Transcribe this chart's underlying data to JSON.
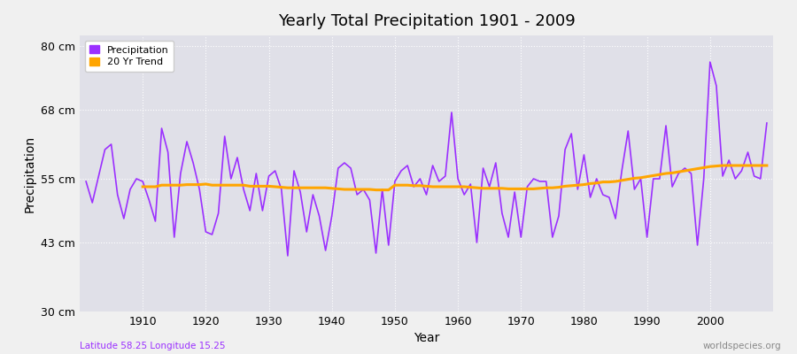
{
  "title": "Yearly Total Precipitation 1901 - 2009",
  "xlabel": "Year",
  "ylabel": "Precipitation",
  "subtitle_left": "Latitude 58.25 Longitude 15.25",
  "subtitle_right": "worldspecies.org",
  "ylim": [
    30,
    82
  ],
  "yticks": [
    30,
    43,
    55,
    68,
    80
  ],
  "ytick_labels": [
    "30 cm",
    "43 cm",
    "55 cm",
    "68 cm",
    "80 cm"
  ],
  "xlim": [
    1900,
    2010
  ],
  "xticks": [
    1910,
    1920,
    1930,
    1940,
    1950,
    1960,
    1970,
    1980,
    1990,
    2000
  ],
  "precip_color": "#9B30FF",
  "trend_color": "#FFA500",
  "outer_bg": "#F0F0F0",
  "plot_bg": "#E0E0E8",
  "legend_precip": "Precipitation",
  "legend_trend": "20 Yr Trend",
  "subtitle_left_color": "#9B30FF",
  "subtitle_right_color": "#888888",
  "years": [
    1901,
    1902,
    1903,
    1904,
    1905,
    1906,
    1907,
    1908,
    1909,
    1910,
    1911,
    1912,
    1913,
    1914,
    1915,
    1916,
    1917,
    1918,
    1919,
    1920,
    1921,
    1922,
    1923,
    1924,
    1925,
    1926,
    1927,
    1928,
    1929,
    1930,
    1931,
    1932,
    1933,
    1934,
    1935,
    1936,
    1937,
    1938,
    1939,
    1940,
    1941,
    1942,
    1943,
    1944,
    1945,
    1946,
    1947,
    1948,
    1949,
    1950,
    1951,
    1952,
    1953,
    1954,
    1955,
    1956,
    1957,
    1958,
    1959,
    1960,
    1961,
    1962,
    1963,
    1964,
    1965,
    1966,
    1967,
    1968,
    1969,
    1970,
    1971,
    1972,
    1973,
    1974,
    1975,
    1976,
    1977,
    1978,
    1979,
    1980,
    1981,
    1982,
    1983,
    1984,
    1985,
    1986,
    1987,
    1988,
    1989,
    1990,
    1991,
    1992,
    1993,
    1994,
    1995,
    1996,
    1997,
    1998,
    1999,
    2000,
    2001,
    2002,
    2003,
    2004,
    2005,
    2006,
    2007,
    2008,
    2009
  ],
  "precip": [
    54.5,
    50.5,
    55.5,
    60.5,
    61.5,
    52.0,
    47.5,
    53.0,
    55.0,
    54.5,
    51.0,
    47.0,
    64.5,
    60.0,
    44.0,
    56.0,
    62.0,
    58.0,
    53.0,
    45.0,
    44.5,
    48.5,
    63.0,
    55.0,
    59.0,
    53.0,
    49.0,
    56.0,
    49.0,
    55.5,
    56.5,
    53.0,
    40.5,
    56.5,
    52.5,
    45.0,
    52.0,
    48.0,
    41.5,
    48.0,
    57.0,
    58.0,
    57.0,
    52.0,
    53.0,
    51.0,
    41.0,
    53.0,
    42.5,
    54.5,
    56.5,
    57.5,
    53.5,
    55.0,
    52.0,
    57.5,
    54.5,
    55.5,
    67.5,
    55.0,
    52.0,
    54.0,
    43.0,
    57.0,
    53.5,
    58.0,
    48.5,
    44.0,
    52.5,
    44.0,
    53.5,
    55.0,
    54.5,
    54.5,
    44.0,
    48.0,
    60.5,
    63.5,
    53.0,
    59.5,
    51.5,
    55.0,
    52.0,
    51.5,
    47.5,
    56.5,
    64.0,
    53.0,
    55.0,
    44.0,
    55.0,
    55.0,
    65.0,
    53.5,
    56.0,
    57.0,
    56.0,
    42.5,
    55.0,
    77.0,
    72.5,
    55.5,
    58.5,
    55.0,
    56.5,
    60.0,
    55.5,
    55.0,
    65.5
  ],
  "trend": [
    null,
    null,
    null,
    null,
    null,
    null,
    null,
    null,
    null,
    53.5,
    53.5,
    53.5,
    53.8,
    53.8,
    53.8,
    53.8,
    53.9,
    53.9,
    53.9,
    54.0,
    53.8,
    53.8,
    53.8,
    53.8,
    53.8,
    53.8,
    53.6,
    53.6,
    53.6,
    53.6,
    53.5,
    53.4,
    53.3,
    53.3,
    53.3,
    53.3,
    53.3,
    53.3,
    53.3,
    53.2,
    53.1,
    53.0,
    53.0,
    53.0,
    53.0,
    53.0,
    52.9,
    52.9,
    52.9,
    53.8,
    53.8,
    53.8,
    53.7,
    53.7,
    53.6,
    53.5,
    53.5,
    53.5,
    53.5,
    53.5,
    53.5,
    53.4,
    53.3,
    53.2,
    53.2,
    53.2,
    53.2,
    53.1,
    53.1,
    53.1,
    53.1,
    53.1,
    53.2,
    53.3,
    53.3,
    53.4,
    53.6,
    53.7,
    53.8,
    53.9,
    54.1,
    54.2,
    54.4,
    54.4,
    54.5,
    54.7,
    54.9,
    55.1,
    55.2,
    55.4,
    55.6,
    55.8,
    56.0,
    56.1,
    56.3,
    56.5,
    56.7,
    56.9,
    57.1,
    57.3,
    57.4,
    57.5,
    57.5,
    57.5,
    57.5,
    57.5,
    57.5,
    57.5,
    57.5
  ]
}
